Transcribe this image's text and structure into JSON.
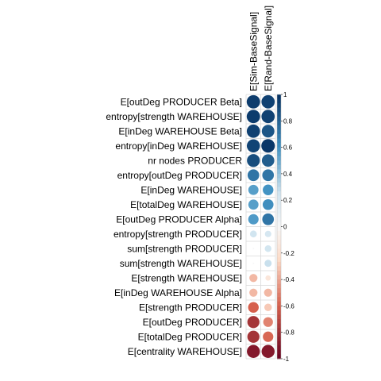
{
  "chart_data": {
    "type": "heatmap",
    "style": "correlation-circles",
    "columns": [
      "E[Sim-BaseSignal]",
      "E[Rand-BaseSignal]"
    ],
    "rows": [
      {
        "label": "E[outDeg PRODUCER Beta]",
        "values": [
          0.95,
          0.93
        ]
      },
      {
        "label": "entropy[strength WAREHOUSE]",
        "values": [
          0.95,
          0.93
        ]
      },
      {
        "label": "E[inDeg WAREHOUSE Beta]",
        "values": [
          0.93,
          0.85
        ]
      },
      {
        "label": "entropy[inDeg WAREHOUSE]",
        "values": [
          0.92,
          0.97
        ]
      },
      {
        "label": "nr nodes PRODUCER",
        "values": [
          0.88,
          0.82
        ]
      },
      {
        "label": "entropy[outDeg PRODUCER]",
        "values": [
          0.72,
          0.72
        ]
      },
      {
        "label": "E[inDeg WAREHOUSE]",
        "values": [
          0.55,
          0.6
        ]
      },
      {
        "label": "E[totalDeg WAREHOUSE]",
        "values": [
          0.55,
          0.62
        ]
      },
      {
        "label": "E[outDeg PRODUCER Alpha]",
        "values": [
          0.57,
          0.72
        ]
      },
      {
        "label": "entropy[strength PRODUCER]",
        "values": [
          0.25,
          0.22
        ]
      },
      {
        "label": "sum[strength PRODUCER]",
        "values": [
          0.01,
          0.24
        ]
      },
      {
        "label": "sum[strength WAREHOUSE]",
        "values": [
          0.01,
          0.27
        ]
      },
      {
        "label": "E[strength WAREHOUSE]",
        "values": [
          -0.35,
          -0.15
        ]
      },
      {
        "label": "E[inDeg WAREHOUSE Alpha]",
        "values": [
          -0.35,
          -0.35
        ]
      },
      {
        "label": "E[strength PRODUCER]",
        "values": [
          -0.6,
          -0.3
        ]
      },
      {
        "label": "E[outDeg PRODUCER]",
        "values": [
          -0.78,
          -0.5
        ]
      },
      {
        "label": "E[totalDeg PRODUCER]",
        "values": [
          -0.78,
          -0.58
        ]
      },
      {
        "label": "E[centrality WAREHOUSE]",
        "values": [
          -0.9,
          -0.9
        ]
      }
    ],
    "colorbar": {
      "range": [
        -1,
        1
      ],
      "ticks": [
        "-1",
        "-0.8",
        "-0.6",
        "-0.4",
        "-0.2",
        "0",
        "0.2",
        "0.4",
        "0.6",
        "0.8",
        "1"
      ]
    },
    "palette": {
      "neg_strong": "#67001f",
      "neg_mid": "#d6604d",
      "neg_light": "#fddbc7",
      "neutral": "#f7f7f7",
      "pos_light": "#d1e5f0",
      "pos_mid": "#4393c3",
      "pos_strong": "#053061"
    }
  }
}
